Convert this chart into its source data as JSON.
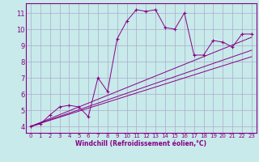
{
  "bg_color": "#c8eaea",
  "grid_color": "#aaaacc",
  "line_color": "#880088",
  "xlim": [
    -0.5,
    23.5
  ],
  "ylim": [
    3.6,
    11.6
  ],
  "xticks": [
    0,
    1,
    2,
    3,
    4,
    5,
    6,
    7,
    8,
    9,
    10,
    11,
    12,
    13,
    14,
    15,
    16,
    17,
    18,
    19,
    20,
    21,
    22,
    23
  ],
  "yticks": [
    4,
    5,
    6,
    7,
    8,
    9,
    10,
    11
  ],
  "xlabel": "Windchill (Refroidissement éolien,°C)",
  "wavy_x": [
    0,
    1,
    2,
    3,
    4,
    5,
    6,
    7,
    8,
    9,
    10,
    11,
    12,
    13,
    14,
    15,
    16,
    17,
    18,
    19,
    20,
    21,
    22,
    23
  ],
  "wavy_y": [
    4.0,
    4.15,
    4.7,
    5.2,
    5.3,
    5.2,
    4.6,
    7.0,
    6.15,
    9.4,
    10.5,
    11.2,
    11.1,
    11.2,
    10.1,
    10.0,
    11.0,
    8.4,
    8.4,
    9.3,
    9.2,
    8.9,
    9.7,
    9.7
  ],
  "line1_x": [
    0,
    23
  ],
  "line1_y": [
    4.0,
    8.3
  ],
  "line2_x": [
    0,
    23
  ],
  "line2_y": [
    4.0,
    8.7
  ],
  "line3_x": [
    0,
    23
  ],
  "line3_y": [
    4.0,
    9.5
  ],
  "tick_fontsize_x": 5,
  "tick_fontsize_y": 6,
  "xlabel_fontsize": 5.5
}
